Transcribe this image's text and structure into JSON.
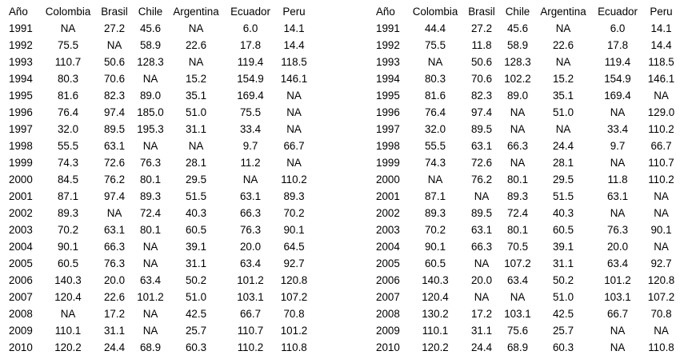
{
  "headers": [
    "Año",
    "Colombia",
    "Brasil",
    "Chile",
    "Argentina",
    "Ecuador",
    "Peru"
  ],
  "left_table": {
    "rows": [
      [
        "1991",
        "NA",
        "27.2",
        "45.6",
        "NA",
        "6.0",
        "14.1"
      ],
      [
        "1992",
        "75.5",
        "NA",
        "58.9",
        "22.6",
        "17.8",
        "14.4"
      ],
      [
        "1993",
        "110.7",
        "50.6",
        "128.3",
        "NA",
        "119.4",
        "118.5"
      ],
      [
        "1994",
        "80.3",
        "70.6",
        "NA",
        "15.2",
        "154.9",
        "146.1"
      ],
      [
        "1995",
        "81.6",
        "82.3",
        "89.0",
        "35.1",
        "169.4",
        "NA"
      ],
      [
        "1996",
        "76.4",
        "97.4",
        "185.0",
        "51.0",
        "75.5",
        "NA"
      ],
      [
        "1997",
        "32.0",
        "89.5",
        "195.3",
        "31.1",
        "33.4",
        "NA"
      ],
      [
        "1998",
        "55.5",
        "63.1",
        "NA",
        "NA",
        "9.7",
        "66.7"
      ],
      [
        "1999",
        "74.3",
        "72.6",
        "76.3",
        "28.1",
        "11.2",
        "NA"
      ],
      [
        "2000",
        "84.5",
        "76.2",
        "80.1",
        "29.5",
        "NA",
        "110.2"
      ],
      [
        "2001",
        "87.1",
        "97.4",
        "89.3",
        "51.5",
        "63.1",
        "89.3"
      ],
      [
        "2002",
        "89.3",
        "NA",
        "72.4",
        "40.3",
        "66.3",
        "70.2"
      ],
      [
        "2003",
        "70.2",
        "63.1",
        "80.1",
        "60.5",
        "76.3",
        "90.1"
      ],
      [
        "2004",
        "90.1",
        "66.3",
        "NA",
        "39.1",
        "20.0",
        "64.5"
      ],
      [
        "2005",
        "60.5",
        "76.3",
        "NA",
        "31.1",
        "63.4",
        "92.7"
      ],
      [
        "2006",
        "140.3",
        "20.0",
        "63.4",
        "50.2",
        "101.2",
        "120.8"
      ],
      [
        "2007",
        "120.4",
        "22.6",
        "101.2",
        "51.0",
        "103.1",
        "107.2"
      ],
      [
        "2008",
        "NA",
        "17.2",
        "NA",
        "42.5",
        "66.7",
        "70.8"
      ],
      [
        "2009",
        "110.1",
        "31.1",
        "NA",
        "25.7",
        "110.7",
        "101.2"
      ],
      [
        "2010",
        "120.2",
        "24.4",
        "68.9",
        "60.3",
        "110.2",
        "110.8"
      ]
    ]
  },
  "right_table": {
    "rows": [
      [
        "1991",
        "44.4",
        "27.2",
        "45.6",
        "NA",
        "6.0",
        "14.1"
      ],
      [
        "1992",
        "75.5",
        "11.8",
        "58.9",
        "22.6",
        "17.8",
        "14.4"
      ],
      [
        "1993",
        "NA",
        "50.6",
        "128.3",
        "NA",
        "119.4",
        "118.5"
      ],
      [
        "1994",
        "80.3",
        "70.6",
        "102.2",
        "15.2",
        "154.9",
        "146.1"
      ],
      [
        "1995",
        "81.6",
        "82.3",
        "89.0",
        "35.1",
        "169.4",
        "NA"
      ],
      [
        "1996",
        "76.4",
        "97.4",
        "NA",
        "51.0",
        "NA",
        "129.0"
      ],
      [
        "1997",
        "32.0",
        "89.5",
        "NA",
        "NA",
        "33.4",
        "110.2"
      ],
      [
        "1998",
        "55.5",
        "63.1",
        "66.3",
        "24.4",
        "9.7",
        "66.7"
      ],
      [
        "1999",
        "74.3",
        "72.6",
        "NA",
        "28.1",
        "NA",
        "110.7"
      ],
      [
        "2000",
        "NA",
        "76.2",
        "80.1",
        "29.5",
        "11.8",
        "110.2"
      ],
      [
        "2001",
        "87.1",
        "NA",
        "89.3",
        "51.5",
        "63.1",
        "NA"
      ],
      [
        "2002",
        "89.3",
        "89.5",
        "72.4",
        "40.3",
        "NA",
        "NA"
      ],
      [
        "2003",
        "70.2",
        "63.1",
        "80.1",
        "60.5",
        "76.3",
        "90.1"
      ],
      [
        "2004",
        "90.1",
        "66.3",
        "70.5",
        "39.1",
        "20.0",
        "NA"
      ],
      [
        "2005",
        "60.5",
        "NA",
        "107.2",
        "31.1",
        "63.4",
        "92.7"
      ],
      [
        "2006",
        "140.3",
        "20.0",
        "63.4",
        "50.2",
        "101.2",
        "120.8"
      ],
      [
        "2007",
        "120.4",
        "NA",
        "NA",
        "51.0",
        "103.1",
        "107.2"
      ],
      [
        "2008",
        "130.2",
        "17.2",
        "103.1",
        "42.5",
        "66.7",
        "70.8"
      ],
      [
        "2009",
        "110.1",
        "31.1",
        "75.6",
        "25.7",
        "NA",
        "NA"
      ],
      [
        "2010",
        "120.2",
        "24.4",
        "68.9",
        "60.3",
        "NA",
        "110.8"
      ]
    ]
  }
}
